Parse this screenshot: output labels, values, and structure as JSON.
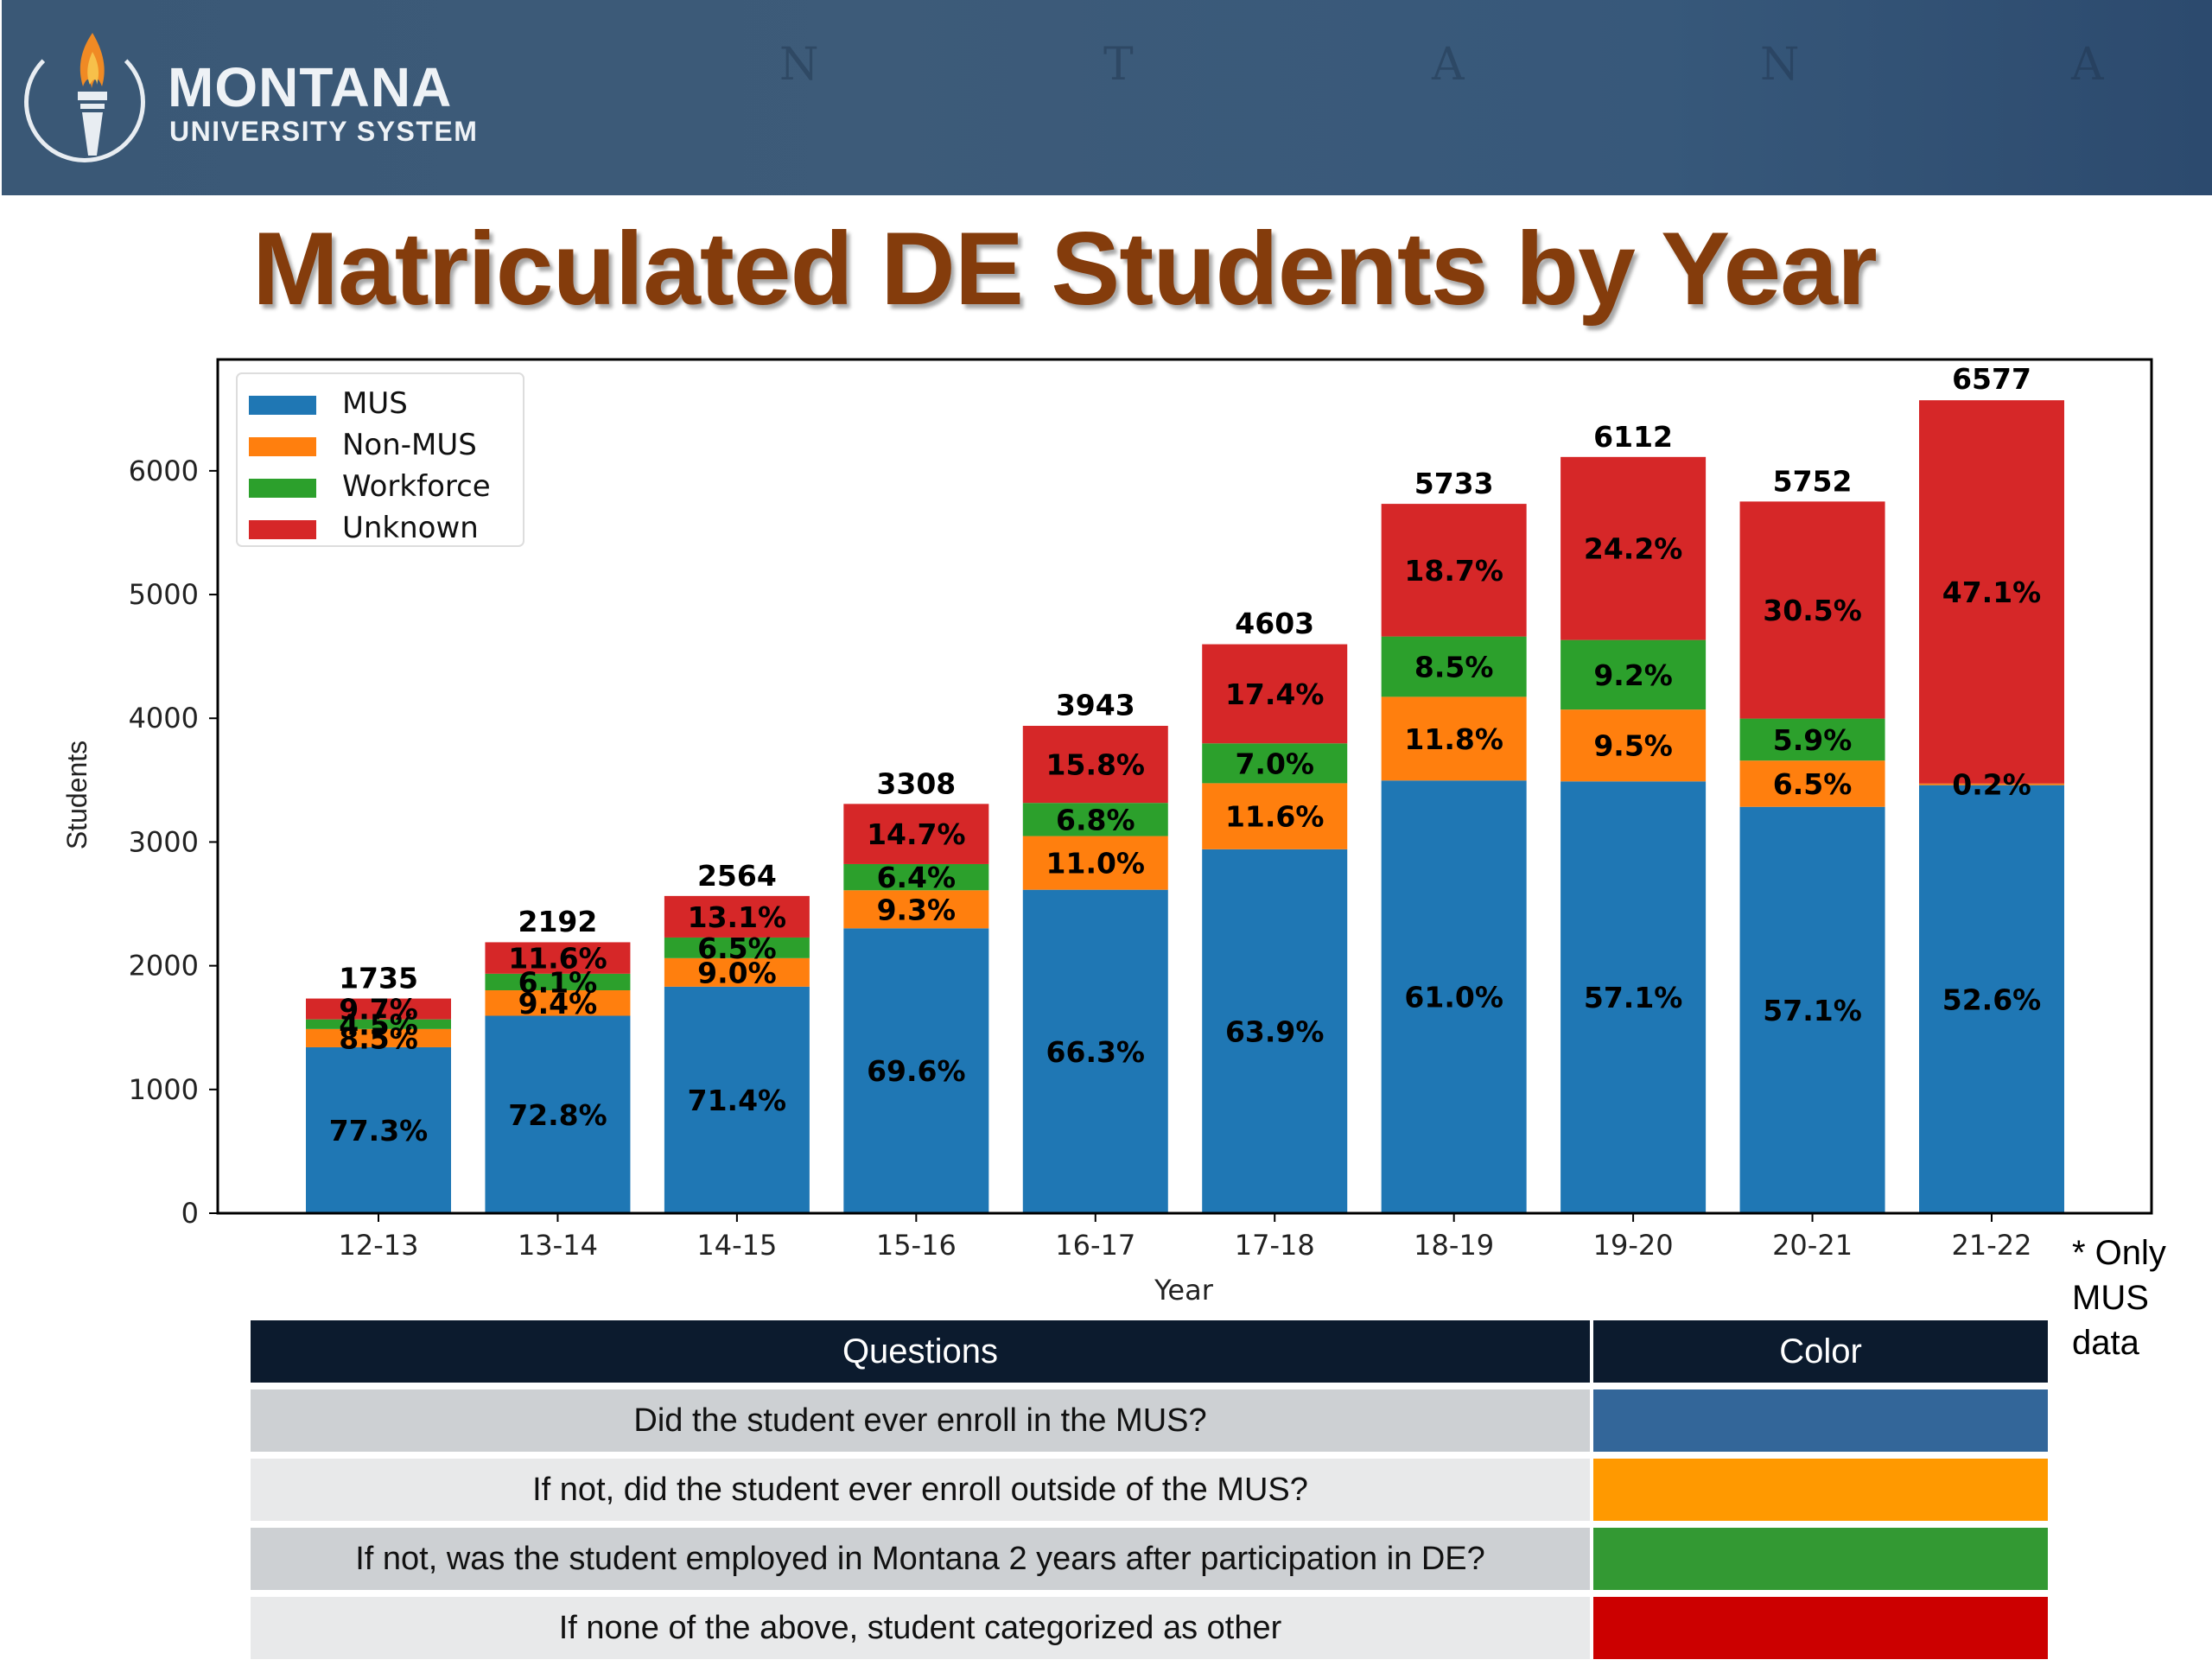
{
  "header": {
    "brand_line1": "MONTANA",
    "brand_line2": "UNIVERSITY SYSTEM",
    "map_letters": [
      "N",
      "T",
      "A",
      "N",
      "A"
    ]
  },
  "page_title": "Matriculated DE Students by Year",
  "chart_data": {
    "type": "bar",
    "stacked": true,
    "title": "",
    "xlabel": "Year",
    "ylabel": "Students",
    "ylim": [
      0,
      6900
    ],
    "yticks": [
      0,
      1000,
      2000,
      3000,
      4000,
      5000,
      6000
    ],
    "grid": false,
    "legend_position": "top-left",
    "categories": [
      "12-13",
      "13-14",
      "14-15",
      "15-16",
      "16-17",
      "17-18",
      "18-19",
      "19-20",
      "20-21",
      "21-22"
    ],
    "totals": [
      1735,
      2192,
      2564,
      3308,
      3943,
      4603,
      5733,
      6112,
      5752,
      6577
    ],
    "series": [
      {
        "name": "MUS",
        "color": "#1f77b4",
        "percent": [
          77.3,
          72.8,
          71.4,
          69.6,
          66.3,
          63.9,
          61.0,
          57.1,
          57.1,
          52.6
        ],
        "labels": [
          "77.3%",
          "72.8%",
          "71.4%",
          "69.6%",
          "66.3%",
          "63.9%",
          "61.0%",
          "57.1%",
          "57.1%",
          "52.6%"
        ]
      },
      {
        "name": "Non-MUS",
        "color": "#ff7f0e",
        "percent": [
          8.5,
          9.4,
          9.0,
          9.3,
          11.0,
          11.6,
          11.8,
          9.5,
          6.5,
          0.2
        ],
        "labels": [
          "8.5%",
          "9.4%",
          "9.0%",
          "9.3%",
          "11.0%",
          "11.6%",
          "11.8%",
          "9.5%",
          "6.5%",
          "0.2%"
        ]
      },
      {
        "name": "Workforce",
        "color": "#2ca02c",
        "percent": [
          4.5,
          6.1,
          6.5,
          6.4,
          6.8,
          7.0,
          8.5,
          9.2,
          5.9,
          0.0
        ],
        "labels": [
          "4.5%",
          "6.1%",
          "6.5%",
          "6.4%",
          "6.8%",
          "7.0%",
          "8.5%",
          "9.2%",
          "5.9%",
          ""
        ]
      },
      {
        "name": "Unknown",
        "color": "#d62728",
        "percent": [
          9.7,
          11.6,
          13.1,
          14.7,
          15.8,
          17.4,
          18.7,
          24.2,
          30.5,
          47.1
        ],
        "labels": [
          "9.7%",
          "11.6%",
          "13.1%",
          "14.7%",
          "15.8%",
          "17.4%",
          "18.7%",
          "24.2%",
          "30.5%",
          "47.1%"
        ]
      }
    ],
    "footnote": "* Only MUS data"
  },
  "footnote_lines": [
    "* Only",
    "MUS",
    "data"
  ],
  "legend_table": {
    "headers": [
      "Questions",
      "Color"
    ],
    "rows": [
      {
        "question": "Did the student ever enroll in the MUS?",
        "color": "#336699"
      },
      {
        "question": "If not, did the student ever enroll outside of the MUS?",
        "color": "#ff9900"
      },
      {
        "question": "If not, was the student employed in Montana 2 years after participation in DE?",
        "color": "#339933"
      },
      {
        "question": "If none of the above, student categorized as other",
        "color": "#cc0000"
      }
    ]
  }
}
